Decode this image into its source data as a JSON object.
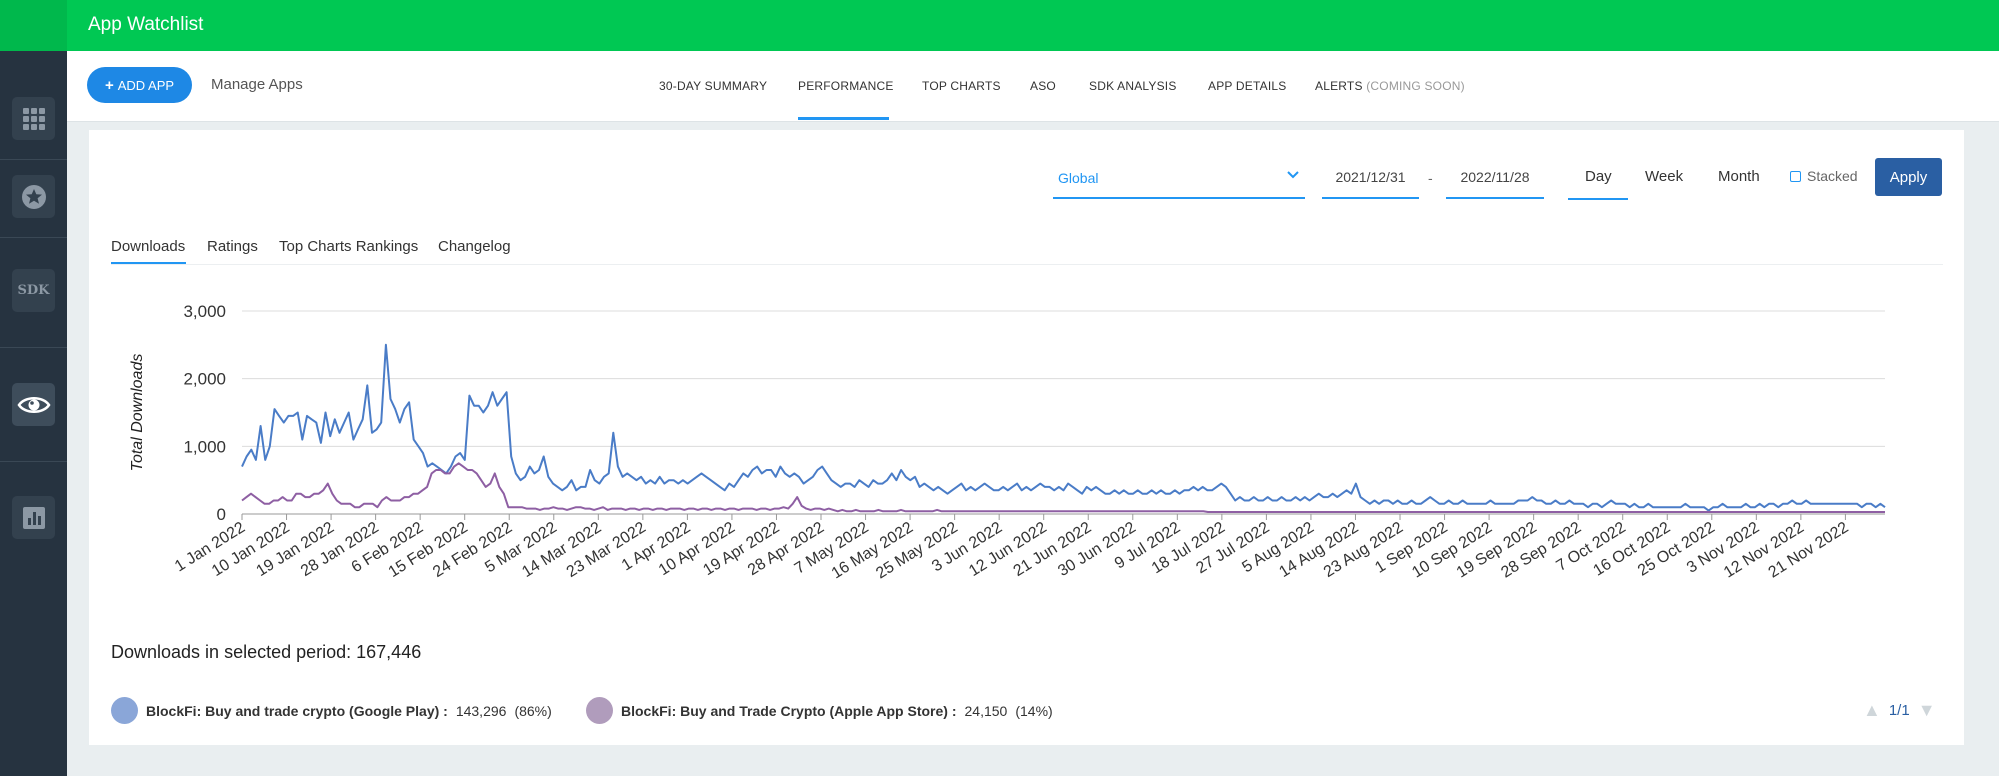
{
  "app": {
    "title": "App Watchlist"
  },
  "sidebar": {
    "items": [
      {
        "icon": "grid-icon",
        "active": false
      },
      {
        "icon": "star-badge-icon",
        "active": false
      },
      {
        "icon": "sdk-icon",
        "label": "SDK",
        "active": false
      },
      {
        "icon": "eye-icon",
        "active": true
      },
      {
        "icon": "bar-chart-icon",
        "active": false
      }
    ]
  },
  "subnav": {
    "add_app_label": "ADD APP",
    "manage_apps_label": "Manage Apps",
    "tabs": [
      {
        "label": "30-DAY SUMMARY"
      },
      {
        "label": "PERFORMANCE",
        "active": true
      },
      {
        "label": "TOP CHARTS"
      },
      {
        "label": "ASO"
      },
      {
        "label": "SDK ANALYSIS"
      },
      {
        "label": "APP DETAILS"
      },
      {
        "label": "ALERTS",
        "suffix": "(COMING SOON)"
      }
    ]
  },
  "filters": {
    "region": "Global",
    "start_date": "2021/12/31",
    "separator": "-",
    "end_date": "2022/11/28",
    "periods": [
      "Day",
      "Week",
      "Month"
    ],
    "selected_period": "Day",
    "stacked_label": "Stacked",
    "stacked_checked": false,
    "apply_label": "Apply"
  },
  "content_tabs": {
    "items": [
      "Downloads",
      "Ratings",
      "Top Charts Rankings",
      "Changelog"
    ],
    "active": "Downloads"
  },
  "summary": {
    "total_text": "Downloads in selected period: 167,446"
  },
  "legend": [
    {
      "name": "BlockFi: Buy and trade crypto (Google Play) :",
      "value": "143,296",
      "pct": "(86%)",
      "color": "#8aa6d8"
    },
    {
      "name": "BlockFi: Buy and Trade Crypto (Apple App Store) :",
      "value": "24,150",
      "pct": "(14%)",
      "color": "#b09cbc"
    }
  ],
  "pager": {
    "text": "1/1"
  },
  "chart_data": {
    "type": "line",
    "ylabel": "Total Downloads",
    "ylim": [
      0,
      3000
    ],
    "yticks": [
      "3,000",
      "2,000",
      "1,000",
      "0"
    ],
    "xticks": [
      "1 Jan 2022",
      "10 Jan 2022",
      "19 Jan 2022",
      "28 Jan 2022",
      "6 Feb 2022",
      "15 Feb 2022",
      "24 Feb 2022",
      "5 Mar 2022",
      "14 Mar 2022",
      "23 Mar 2022",
      "1 Apr 2022",
      "10 Apr 2022",
      "19 Apr 2022",
      "28 Apr 2022",
      "7 May 2022",
      "16 May 2022",
      "25 May 2022",
      "3 Jun 2022",
      "12 Jun 2022",
      "21 Jun 2022",
      "30 Jun 2022",
      "9 Jul 2022",
      "18 Jul 2022",
      "27 Jul 2022",
      "5 Aug 2022",
      "14 Aug 2022",
      "23 Aug 2022",
      "1 Sep 2022",
      "10 Sep 2022",
      "19 Sep 2022",
      "28 Sep 2022",
      "7 Oct 2022",
      "16 Oct 2022",
      "25 Oct 2022",
      "3 Nov 2022",
      "12 Nov 2022",
      "21 Nov 2022"
    ],
    "series": [
      {
        "name": "BlockFi: Buy and trade crypto (Google Play)",
        "color": "#4a7cc7",
        "values": [
          700,
          850,
          950,
          800,
          1300,
          800,
          1000,
          1550,
          1450,
          1350,
          1450,
          1450,
          1500,
          1100,
          1450,
          1400,
          1350,
          1050,
          1500,
          1150,
          1400,
          1200,
          1350,
          1500,
          1100,
          1250,
          1400,
          1900,
          1200,
          1250,
          1350,
          2500,
          1700,
          1550,
          1350,
          1550,
          1650,
          1100,
          1000,
          900,
          700,
          750,
          700,
          650,
          600,
          700,
          850,
          900,
          800,
          1750,
          1600,
          1600,
          1500,
          1600,
          1800,
          1600,
          1700,
          1800,
          850,
          600,
          500,
          550,
          700,
          600,
          650,
          850,
          550,
          450,
          400,
          350,
          400,
          500,
          350,
          400,
          400,
          650,
          500,
          450,
          550,
          600,
          1200,
          700,
          550,
          600,
          550,
          500,
          550,
          450,
          500,
          450,
          550,
          450,
          500,
          500,
          450,
          500,
          450,
          500,
          550,
          600,
          550,
          500,
          450,
          400,
          350,
          450,
          400,
          500,
          600,
          550,
          650,
          700,
          600,
          650,
          650,
          550,
          700,
          600,
          550,
          600,
          550,
          450,
          500,
          550,
          650,
          700,
          600,
          500,
          450,
          400,
          450,
          450,
          400,
          500,
          450,
          400,
          500,
          450,
          450,
          500,
          600,
          500,
          650,
          550,
          500,
          550,
          400,
          450,
          400,
          350,
          400,
          350,
          300,
          350,
          400,
          450,
          350,
          400,
          350,
          400,
          450,
          400,
          350,
          350,
          400,
          350,
          400,
          450,
          350,
          400,
          350,
          400,
          450,
          400,
          400,
          350,
          400,
          350,
          450,
          400,
          350,
          300,
          400,
          350,
          400,
          350,
          300,
          300,
          350,
          300,
          350,
          300,
          300,
          350,
          300,
          300,
          350,
          300,
          350,
          300,
          300,
          350,
          300,
          350,
          350,
          400,
          350,
          400,
          350,
          350,
          400,
          450,
          400,
          300,
          200,
          250,
          200,
          200,
          250,
          200,
          200,
          250,
          200,
          200,
          250,
          200,
          200,
          250,
          200,
          250,
          200,
          250,
          300,
          250,
          250,
          300,
          250,
          300,
          350,
          300,
          450,
          250,
          200,
          150,
          200,
          150,
          200,
          200,
          150,
          200,
          150,
          150,
          200,
          150,
          150,
          200,
          250,
          200,
          150,
          150,
          200,
          150,
          150,
          200,
          150,
          150,
          150,
          150,
          150,
          200,
          150,
          150,
          150,
          150,
          150,
          200,
          200,
          200,
          250,
          200,
          200,
          150,
          150,
          200,
          150,
          150,
          200,
          150,
          150,
          150,
          100,
          150,
          150,
          100,
          150,
          200,
          150,
          150,
          150,
          100,
          150,
          100,
          100,
          150,
          100,
          100,
          100,
          100,
          100,
          100,
          100,
          150,
          100,
          100,
          100,
          100,
          50,
          100,
          100,
          150,
          100,
          100,
          100,
          100,
          150,
          100,
          100,
          150,
          100,
          150,
          150,
          100,
          150,
          150,
          200,
          150,
          150,
          200,
          150,
          150,
          150,
          150,
          150,
          150,
          150,
          150,
          150,
          150,
          150,
          100,
          150,
          150,
          100,
          150,
          100
        ]
      },
      {
        "name": "BlockFi: Buy and Trade Crypto (Apple App Store)",
        "color": "#8e5fa3",
        "values": [
          200,
          250,
          300,
          250,
          200,
          150,
          150,
          200,
          200,
          250,
          200,
          200,
          300,
          300,
          250,
          250,
          300,
          300,
          350,
          450,
          300,
          200,
          150,
          150,
          150,
          100,
          100,
          150,
          150,
          150,
          100,
          200,
          250,
          200,
          200,
          200,
          250,
          250,
          300,
          300,
          350,
          400,
          600,
          650,
          650,
          600,
          600,
          700,
          750,
          700,
          650,
          650,
          600,
          500,
          400,
          450,
          600,
          400,
          300,
          100,
          100,
          100,
          100,
          80,
          80,
          80,
          60,
          80,
          80,
          100,
          80,
          80,
          60,
          80,
          100,
          100,
          80,
          80,
          60,
          80,
          100,
          60,
          80,
          80,
          80,
          60,
          80,
          80,
          60,
          80,
          80,
          60,
          80,
          80,
          60,
          80,
          80,
          80,
          60,
          80,
          80,
          60,
          80,
          80,
          60,
          80,
          80,
          60,
          80,
          80,
          60,
          80,
          80,
          80,
          60,
          80,
          80,
          60,
          80,
          80,
          100,
          80,
          150,
          250,
          120,
          80,
          60,
          80,
          80,
          60,
          80,
          60,
          40,
          60,
          40,
          40,
          60,
          40,
          40,
          40,
          40,
          60,
          40,
          40,
          40,
          40,
          60,
          40,
          40,
          40,
          40,
          40,
          40,
          40,
          60,
          40,
          40,
          40,
          40,
          40,
          40,
          40,
          40,
          40,
          40,
          40,
          40,
          40,
          40,
          40,
          40,
          40,
          40,
          40,
          40,
          40,
          40,
          40,
          40,
          40,
          40,
          40,
          40,
          40,
          40,
          40,
          40,
          40,
          40,
          40,
          40,
          40,
          40,
          40,
          40,
          40,
          40,
          40,
          40,
          40,
          40,
          40,
          40,
          40,
          40,
          40,
          40,
          40,
          40,
          40,
          40,
          40,
          40,
          40,
          30,
          30,
          30,
          30,
          30,
          30,
          30,
          30,
          30,
          30,
          30,
          30,
          30,
          30,
          30,
          30,
          30,
          30,
          30,
          30,
          30,
          30,
          30,
          30,
          30,
          30,
          30,
          30,
          30,
          30,
          30,
          30,
          30,
          30,
          30,
          30,
          30,
          30,
          30,
          30,
          30,
          30,
          30,
          30,
          30,
          30,
          30,
          30,
          30,
          30,
          30,
          30,
          30,
          30,
          30,
          30,
          30,
          30,
          30,
          30,
          30,
          30,
          30,
          30,
          30,
          30,
          30,
          30,
          30,
          30,
          30,
          30,
          30,
          30,
          30,
          30,
          30,
          30,
          30,
          30,
          30,
          30,
          30,
          30,
          30,
          30,
          30,
          30,
          30,
          30,
          30,
          30,
          30,
          30,
          30,
          30,
          30,
          30,
          30,
          30,
          30,
          30,
          30,
          30,
          30,
          30,
          30,
          30,
          30,
          30,
          30,
          30,
          30,
          30,
          30,
          30,
          30,
          30,
          30,
          30,
          30,
          30,
          30,
          30,
          30,
          30,
          30,
          30,
          30,
          30,
          30,
          30,
          30,
          30,
          30,
          30,
          30,
          30,
          30,
          30,
          30,
          30,
          30,
          30,
          30,
          30,
          30,
          30,
          30,
          30,
          30
        ]
      }
    ],
    "grid": true,
    "legend_position": "bottom"
  }
}
